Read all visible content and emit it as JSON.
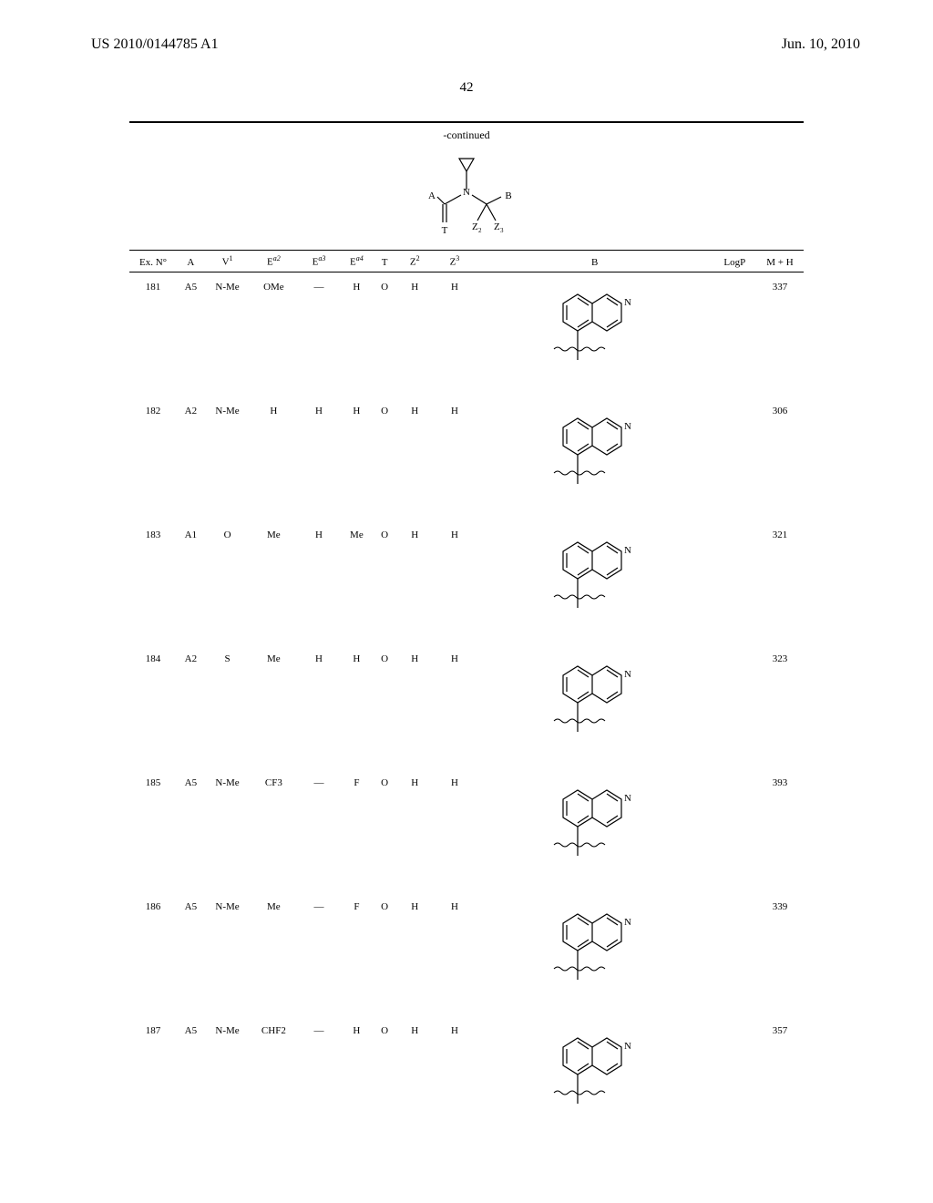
{
  "header": {
    "patent_number": "US 2010/0144785 A1",
    "date": "Jun. 10, 2010"
  },
  "page_number": "42",
  "table_caption": "-continued",
  "columns": {
    "ex_no": "Ex. N°",
    "a": "A",
    "v1_base": "V",
    "v1_sup": "1",
    "ea2_base": "E",
    "ea2_sup": "a2",
    "ea3_base": "E",
    "ea3_sup": "a3",
    "ea4_base": "E",
    "ea4_sup": "a4",
    "t": "T",
    "z2_base": "Z",
    "z2_sup": "2",
    "z3_base": "Z",
    "z3_sup": "3",
    "b": "B",
    "logp": "LogP",
    "mh": "M + H"
  },
  "rows": [
    {
      "ex": "181",
      "a": "A5",
      "v1": "N-Me",
      "ea2": "OMe",
      "ea3": "—",
      "ea4": "H",
      "t": "O",
      "z2": "H",
      "z3": "H",
      "logp": "",
      "mh": "337"
    },
    {
      "ex": "182",
      "a": "A2",
      "v1": "N-Me",
      "ea2": "H",
      "ea3": "H",
      "ea4": "H",
      "t": "O",
      "z2": "H",
      "z3": "H",
      "logp": "",
      "mh": "306"
    },
    {
      "ex": "183",
      "a": "A1",
      "v1": "O",
      "ea2": "Me",
      "ea3": "H",
      "ea4": "Me",
      "t": "O",
      "z2": "H",
      "z3": "H",
      "logp": "",
      "mh": "321"
    },
    {
      "ex": "184",
      "a": "A2",
      "v1": "S",
      "ea2": "Me",
      "ea3": "H",
      "ea4": "H",
      "t": "O",
      "z2": "H",
      "z3": "H",
      "logp": "",
      "mh": "323"
    },
    {
      "ex": "185",
      "a": "A5",
      "v1": "N-Me",
      "ea2": "CF3",
      "ea3": "—",
      "ea4": "F",
      "t": "O",
      "z2": "H",
      "z3": "H",
      "logp": "",
      "mh": "393"
    },
    {
      "ex": "186",
      "a": "A5",
      "v1": "N-Me",
      "ea2": "Me",
      "ea3": "—",
      "ea4": "F",
      "t": "O",
      "z2": "H",
      "z3": "H",
      "logp": "",
      "mh": "339"
    },
    {
      "ex": "187",
      "a": "A5",
      "v1": "N-Me",
      "ea2": "CHF2",
      "ea3": "—",
      "ea4": "H",
      "t": "O",
      "z2": "H",
      "z3": "H",
      "logp": "",
      "mh": "357"
    }
  ],
  "scheme_labels": {
    "A": "A",
    "T": "T",
    "N": "N",
    "B": "B",
    "Z2": "Z",
    "Z2s": "2",
    "Z3": "Z",
    "Z3s": "3"
  },
  "b_label": "N",
  "colors": {
    "text": "#000000",
    "bg": "#ffffff"
  },
  "col_widths": {
    "ex_no": 44,
    "a": 26,
    "v1": 42,
    "ea2": 44,
    "ea3": 40,
    "ea4": 30,
    "t": 22,
    "z2": 34,
    "z3": 40,
    "b": 220,
    "logp": 40,
    "mh": 44
  }
}
